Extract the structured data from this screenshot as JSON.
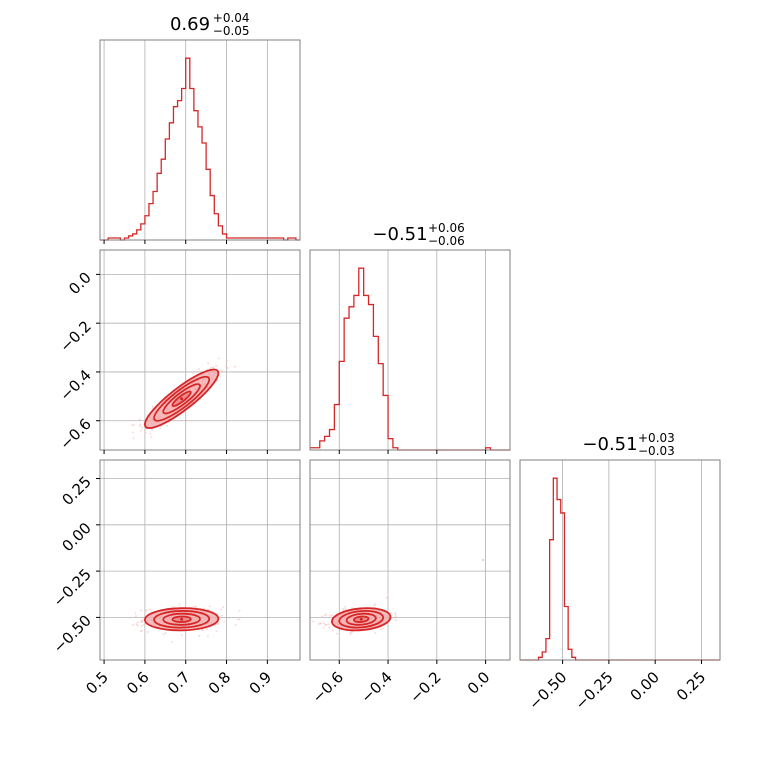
{
  "chart_data": {
    "type": "corner",
    "colors": {
      "main": "#d62728",
      "fill": "#f4a6a7",
      "cloud": "#f7b9ba",
      "grid": "#b0b0b0",
      "frame": "#808080"
    },
    "grid": true,
    "titles": [
      {
        "base": "0.69",
        "plus": "+0.04",
        "minus": "−0.05"
      },
      {
        "base": "−0.51",
        "plus": "+0.06",
        "minus": "−0.06"
      },
      {
        "base": "−0.51",
        "plus": "+0.03",
        "minus": "−0.03"
      }
    ],
    "params": [
      {
        "lim": [
          0.49,
          0.98
        ],
        "ticks": [
          0.5,
          0.6,
          0.7,
          0.8,
          0.9
        ],
        "tick_labels": [
          "0.5",
          "0.6",
          "0.7",
          "0.8",
          "0.9"
        ]
      },
      {
        "lim": [
          -0.72,
          0.1
        ],
        "ticks": [
          -0.6,
          -0.4,
          -0.2,
          0.0
        ],
        "tick_labels": [
          "−0.6",
          "−0.4",
          "−0.2",
          "0.0"
        ]
      },
      {
        "lim": [
          -0.73,
          0.35
        ],
        "ticks": [
          -0.5,
          -0.25,
          0.0,
          0.25
        ],
        "tick_labels": [
          "−0.50",
          "−0.25",
          "0.00",
          "0.25"
        ]
      }
    ],
    "histograms": [
      {
        "bins": [
          0.49,
          0.5,
          0.51,
          0.52,
          0.53,
          0.54,
          0.55,
          0.56,
          0.57,
          0.58,
          0.59,
          0.6,
          0.61,
          0.62,
          0.63,
          0.64,
          0.65,
          0.66,
          0.67,
          0.68,
          0.69,
          0.7,
          0.71,
          0.72,
          0.73,
          0.74,
          0.75,
          0.76,
          0.77,
          0.78,
          0.79,
          0.8,
          0.81,
          0.82,
          0.83,
          0.84,
          0.85,
          0.86,
          0.87,
          0.88,
          0.89,
          0.9,
          0.91,
          0.92,
          0.93,
          0.94,
          0.95,
          0.96,
          0.97,
          0.98
        ],
        "counts": [
          0,
          0,
          1,
          1,
          1,
          0,
          1,
          2,
          3,
          5,
          8,
          12,
          18,
          24,
          33,
          40,
          50,
          58,
          66,
          69,
          75,
          90,
          75,
          64,
          56,
          48,
          35,
          22,
          13,
          7,
          3,
          1,
          1,
          1,
          1,
          1,
          1,
          1,
          1,
          1,
          1,
          1,
          1,
          1,
          1,
          0,
          1,
          1,
          0
        ]
      },
      {
        "bins": [
          -0.72,
          -0.7,
          -0.68,
          -0.66,
          -0.64,
          -0.62,
          -0.6,
          -0.58,
          -0.56,
          -0.54,
          -0.52,
          -0.5,
          -0.48,
          -0.46,
          -0.44,
          -0.42,
          -0.4,
          -0.38,
          -0.36,
          -0.34,
          -0.32,
          -0.3,
          -0.28,
          -0.26,
          -0.24,
          -0.22,
          -0.2,
          -0.18,
          -0.16,
          -0.14,
          -0.12,
          -0.1,
          -0.08,
          -0.06,
          -0.04,
          -0.02,
          0.0,
          0.02,
          0.04,
          0.06,
          0.08,
          0.1
        ],
        "counts": [
          1,
          1,
          4,
          6,
          9,
          20,
          39,
          58,
          63,
          68,
          80,
          68,
          64,
          50,
          38,
          24,
          5,
          1,
          0,
          0,
          0,
          0,
          0,
          0,
          0,
          0,
          0,
          0,
          0,
          0,
          0,
          0,
          0,
          0,
          0,
          0,
          1,
          0,
          0,
          0,
          0
        ]
      },
      {
        "bins": [
          -0.73,
          -0.71,
          -0.69,
          -0.67,
          -0.65,
          -0.63,
          -0.61,
          -0.59,
          -0.57,
          -0.55,
          -0.53,
          -0.51,
          -0.49,
          -0.47,
          -0.45,
          -0.43,
          -0.41,
          -0.39,
          -0.37,
          -0.35,
          -0.33,
          -0.31,
          -0.29,
          -0.27,
          -0.25,
          -0.23,
          -0.21,
          -0.19,
          -0.17,
          -0.15,
          -0.13,
          -0.11,
          -0.09,
          -0.07,
          -0.05,
          -0.03,
          -0.01,
          0.01,
          0.03,
          0.05,
          0.07,
          0.09,
          0.11,
          0.13,
          0.15,
          0.17,
          0.19,
          0.21,
          0.23,
          0.25,
          0.27,
          0.29,
          0.31,
          0.33,
          0.35
        ],
        "counts": [
          0,
          0,
          0,
          0,
          0,
          1,
          3,
          8,
          45,
          68,
          60,
          55,
          20,
          4,
          1,
          0,
          0,
          0,
          0,
          0,
          0,
          0,
          0,
          0,
          0,
          0,
          0,
          0,
          0,
          0,
          0,
          0,
          0,
          0,
          0,
          0,
          0,
          0,
          0,
          0,
          0,
          0,
          0,
          0,
          0,
          0,
          0,
          0,
          0,
          0,
          0,
          0,
          0,
          0
        ]
      }
    ],
    "pairs": [
      {
        "x": 0,
        "y": 1,
        "mean": [
          0.69,
          -0.51
        ],
        "sd": [
          0.045,
          0.06
        ],
        "rho": 0.88,
        "cloud_n": 380
      },
      {
        "x": 0,
        "y": 2,
        "mean": [
          0.69,
          -0.51
        ],
        "sd": [
          0.045,
          0.03
        ],
        "rho": 0.05,
        "cloud_n": 380
      },
      {
        "x": 1,
        "y": 2,
        "mean": [
          -0.51,
          -0.51
        ],
        "sd": [
          0.06,
          0.03
        ],
        "rho": 0.2,
        "cloud_n": 380
      }
    ],
    "contour_levels_sigma": [
      0.5,
      1.0,
      1.5,
      2.0
    ],
    "outlier": {
      "x": -0.01,
      "y": -0.19
    }
  }
}
